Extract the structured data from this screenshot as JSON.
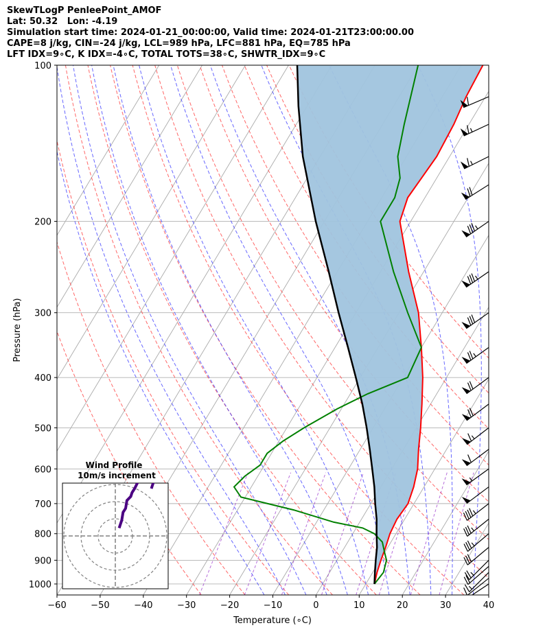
{
  "header": {
    "line1": "SkewTLogP PenleePoint_AMOF",
    "line2": "Lat: 50.32   Lon: -4.19",
    "line3": "Simulation start time: 2024-01-21_00:00:00, Valid time: 2024-01-21T23:00:00.00",
    "line4": "CAPE=8 j/kg, CIN=-24 j/kg, LCL=989 hPa, LFC=881 hPa, EQ=785 hPa",
    "line5": "LFT IDX=9∘C, K IDX=-4∘C, TOTAL TOTS=38∘C, SHWTR_IDX=9∘C"
  },
  "chart_data": {
    "type": "line",
    "subtype": "skew-t log-p",
    "xlabel": "Temperature (∘C)",
    "ylabel": "Pressure (hPa)",
    "xlim": [
      -60,
      40
    ],
    "ylim": [
      1050,
      100
    ],
    "y_scale": "log",
    "x_ticks": [
      "−60",
      "−50",
      "−40",
      "−30",
      "−20",
      "−10",
      "0",
      "10",
      "20",
      "30",
      "40"
    ],
    "y_ticks": [
      "100",
      "200",
      "300",
      "400",
      "500",
      "600",
      "700",
      "800",
      "900",
      "1000"
    ],
    "series": [
      {
        "role": "temperature",
        "color": "#ff0000",
        "points": [
          [
            1000,
            12
          ],
          [
            950,
            11
          ],
          [
            900,
            10.2
          ],
          [
            850,
            9.5
          ],
          [
            800,
            8.6
          ],
          [
            750,
            8.2
          ],
          [
            700,
            8.6
          ],
          [
            650,
            7.6
          ],
          [
            600,
            6
          ],
          [
            550,
            3.5
          ],
          [
            500,
            1
          ],
          [
            450,
            -2
          ],
          [
            400,
            -5.5
          ],
          [
            350,
            -10
          ],
          [
            300,
            -15.5
          ],
          [
            250,
            -23.5
          ],
          [
            200,
            -32.5
          ],
          [
            180,
            -34
          ],
          [
            150,
            -33
          ],
          [
            130,
            -33.5
          ],
          [
            115,
            -34.5
          ],
          [
            100,
            -35
          ]
        ]
      },
      {
        "role": "dewpoint",
        "color": "#008000",
        "points": [
          [
            1000,
            12
          ],
          [
            950,
            12.5
          ],
          [
            900,
            11.5
          ],
          [
            870,
            10
          ],
          [
            830,
            8
          ],
          [
            800,
            5
          ],
          [
            780,
            1.5
          ],
          [
            760,
            -6
          ],
          [
            720,
            -17
          ],
          [
            680,
            -31
          ],
          [
            650,
            -34
          ],
          [
            620,
            -33
          ],
          [
            590,
            -31
          ],
          [
            560,
            -31
          ],
          [
            530,
            -29
          ],
          [
            500,
            -26
          ],
          [
            460,
            -21
          ],
          [
            430,
            -16
          ],
          [
            400,
            -9
          ],
          [
            350,
            -10
          ],
          [
            300,
            -18
          ],
          [
            250,
            -27
          ],
          [
            200,
            -37
          ],
          [
            180,
            -37
          ],
          [
            165,
            -38.5
          ],
          [
            150,
            -42
          ],
          [
            130,
            -45
          ],
          [
            100,
            -50
          ]
        ]
      },
      {
        "role": "parcel",
        "color": "#000000",
        "points": [
          [
            1000,
            12
          ],
          [
            950,
            10.5
          ],
          [
            900,
            9
          ],
          [
            850,
            7.5
          ],
          [
            800,
            5.5
          ],
          [
            750,
            3.5
          ],
          [
            700,
            1
          ],
          [
            650,
            -1.5
          ],
          [
            600,
            -4.5
          ],
          [
            550,
            -7.8
          ],
          [
            500,
            -11.5
          ],
          [
            450,
            -15.8
          ],
          [
            400,
            -21
          ],
          [
            350,
            -27
          ],
          [
            300,
            -34
          ],
          [
            250,
            -42
          ],
          [
            200,
            -52
          ],
          [
            150,
            -64
          ],
          [
            120,
            -72
          ],
          [
            100,
            -78
          ]
        ]
      }
    ],
    "shaded_region": {
      "between": [
        "parcel",
        "temperature"
      ],
      "color": "#a0c4de"
    },
    "dry_adiabats_theta_C": [
      -30,
      -20,
      -10,
      0,
      10,
      20,
      30,
      40,
      50,
      60,
      70,
      80,
      90,
      100
    ],
    "moist_adiabats_C": [
      -15,
      -10,
      -5,
      0,
      5,
      10,
      15,
      20,
      25,
      30,
      35
    ],
    "mixing_ratio_gkg": [
      0.4,
      1,
      2,
      4,
      7,
      10,
      16,
      24
    ],
    "isotherms_C": [
      -110,
      -100,
      -90,
      -80,
      -70,
      -60,
      -50,
      -40,
      -30,
      -20,
      -10,
      0,
      10,
      20,
      30,
      40
    ],
    "wind_barbs": [
      {
        "p": 1000,
        "u": 3,
        "v": 2
      },
      {
        "p": 975,
        "u": 5,
        "v": 4
      },
      {
        "p": 950,
        "u": 6,
        "v": 6
      },
      {
        "p": 925,
        "u": 8,
        "v": 7
      },
      {
        "p": 900,
        "u": 9,
        "v": 9
      },
      {
        "p": 850,
        "u": 12,
        "v": 10
      },
      {
        "p": 800,
        "u": 13,
        "v": 11
      },
      {
        "p": 750,
        "u": 15,
        "v": 12
      },
      {
        "p": 700,
        "u": 18,
        "v": 14
      },
      {
        "p": 650,
        "u": 20,
        "v": 15
      },
      {
        "p": 600,
        "u": 22,
        "v": 16
      },
      {
        "p": 550,
        "u": 24,
        "v": 18
      },
      {
        "p": 500,
        "u": 26,
        "v": 20
      },
      {
        "p": 450,
        "u": 28,
        "v": 21
      },
      {
        "p": 400,
        "u": 30,
        "v": 22
      },
      {
        "p": 350,
        "u": 32,
        "v": 23
      },
      {
        "p": 300,
        "u": 34,
        "v": 24
      },
      {
        "p": 250,
        "u": 36,
        "v": 25
      },
      {
        "p": 200,
        "u": 36,
        "v": 25
      },
      {
        "p": 170,
        "u": 30,
        "v": 19
      },
      {
        "p": 150,
        "u": 30,
        "v": 15
      },
      {
        "p": 130,
        "u": 30,
        "v": 14
      },
      {
        "p": 115,
        "u": 28,
        "v": 12
      }
    ],
    "hodograph": {
      "title_line1": "Wind Profile",
      "title_line2": "10m/s increment",
      "ring_increment_ms": 10,
      "trace_color": "#4b0082"
    }
  }
}
